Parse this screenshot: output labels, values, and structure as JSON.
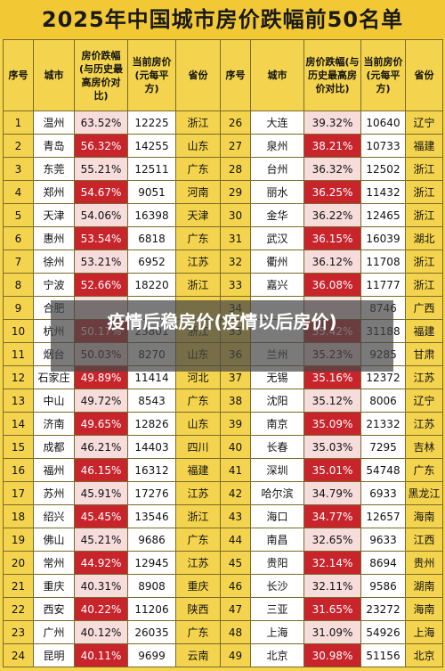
{
  "title": "2025年中国城市房价跌幅前50名单",
  "headers": [
    "序号",
    "城市",
    "房价跌幅(与历史最高房价对比)",
    "当前房价(元每平方)",
    "省份"
  ],
  "rows": [
    [
      [
        "1",
        "温州",
        "63.52%",
        "12225",
        "浙江"
      ],
      [
        "26",
        "大连",
        "39.32%",
        "10640",
        "辽宁"
      ]
    ],
    [
      [
        "2",
        "青岛",
        "56.32%",
        "14255",
        "山东"
      ],
      [
        "27",
        "泉州",
        "38.21%",
        "10733",
        "福建"
      ]
    ],
    [
      [
        "3",
        "东莞",
        "55.21%",
        "12511",
        "广东"
      ],
      [
        "28",
        "台州",
        "36.32%",
        "12502",
        "浙江"
      ]
    ],
    [
      [
        "4",
        "郑州",
        "54.67%",
        "9051",
        "河南"
      ],
      [
        "29",
        "丽水",
        "36.25%",
        "11432",
        "浙江"
      ]
    ],
    [
      [
        "5",
        "天津",
        "54.06%",
        "16398",
        "天津"
      ],
      [
        "30",
        "金华",
        "36.22%",
        "12465",
        "浙江"
      ]
    ],
    [
      [
        "6",
        "惠州",
        "53.54%",
        "6818",
        "广东"
      ],
      [
        "31",
        "武汉",
        "36.15%",
        "16039",
        "湖北"
      ]
    ],
    [
      [
        "7",
        "徐州",
        "53.21%",
        "6952",
        "江苏"
      ],
      [
        "32",
        "衢州",
        "36.12%",
        "11708",
        "浙江"
      ]
    ],
    [
      [
        "8",
        "宁波",
        "52.66%",
        "18220",
        "浙江"
      ],
      [
        "33",
        "嘉兴",
        "36.08%",
        "11777",
        "浙江"
      ]
    ],
    [
      [
        "9",
        "合肥",
        "",
        "",
        "",
        ""
      ],
      [
        "34",
        "",
        "",
        "8746",
        "广西"
      ]
    ],
    [
      [
        "10",
        "杭州",
        "50.17%",
        "23801",
        "浙江"
      ],
      [
        "35",
        "",
        "35.42%",
        "31188",
        "福建"
      ]
    ],
    [
      [
        "11",
        "烟台",
        "50.03%",
        "8270",
        "山东"
      ],
      [
        "36",
        "兰州",
        "35.23%",
        "9285",
        "甘肃"
      ]
    ],
    [
      [
        "12",
        "石家庄",
        "49.89%",
        "11414",
        "河北"
      ],
      [
        "37",
        "无锡",
        "35.16%",
        "12372",
        "江苏"
      ]
    ],
    [
      [
        "13",
        "中山",
        "49.72%",
        "8543",
        "广东"
      ],
      [
        "38",
        "沈阳",
        "35.12%",
        "8006",
        "辽宁"
      ]
    ],
    [
      [
        "14",
        "济南",
        "49.65%",
        "12826",
        "山东"
      ],
      [
        "39",
        "南京",
        "35.09%",
        "21332",
        "江苏"
      ]
    ],
    [
      [
        "15",
        "成都",
        "46.21%",
        "14403",
        "四川"
      ],
      [
        "40",
        "长春",
        "35.03%",
        "7295",
        "吉林"
      ]
    ],
    [
      [
        "16",
        "福州",
        "46.15%",
        "16312",
        "福建"
      ],
      [
        "41",
        "深圳",
        "35.01%",
        "54748",
        "广东"
      ]
    ],
    [
      [
        "17",
        "苏州",
        "45.91%",
        "17276",
        "江苏"
      ],
      [
        "42",
        "哈尔滨",
        "34.79%",
        "6933",
        "黑龙江"
      ]
    ],
    [
      [
        "18",
        "绍兴",
        "45.45%",
        "13546",
        "浙江"
      ],
      [
        "43",
        "海口",
        "34.77%",
        "12657",
        "海南"
      ]
    ],
    [
      [
        "19",
        "佛山",
        "45.21%",
        "9686",
        "广东"
      ],
      [
        "44",
        "南昌",
        "32.65%",
        "9633",
        "江西"
      ]
    ],
    [
      [
        "20",
        "常州",
        "44.92%",
        "12945",
        "江苏"
      ],
      [
        "45",
        "贵阳",
        "32.14%",
        "8694",
        "贵州"
      ]
    ],
    [
      [
        "21",
        "重庆",
        "40.31%",
        "8908",
        "重庆"
      ],
      [
        "46",
        "长沙",
        "32.11%",
        "9586",
        "湖南"
      ]
    ],
    [
      [
        "22",
        "西安",
        "40.22%",
        "11206",
        "陕西"
      ],
      [
        "47",
        "三亚",
        "31.65%",
        "23272",
        "海南"
      ]
    ],
    [
      [
        "23",
        "广州",
        "40.12%",
        "26035",
        "广东"
      ],
      [
        "48",
        "上海",
        "31.09%",
        "54926",
        "上海"
      ]
    ],
    [
      [
        "24",
        "昆明",
        "40.11%",
        "9699",
        "云南"
      ],
      [
        "49",
        "北京",
        "30.98%",
        "51156",
        "北京"
      ]
    ]
  ],
  "hot_left": [
    2,
    4,
    6,
    8,
    10,
    12,
    14,
    16,
    18,
    20,
    22,
    24
  ],
  "hot_right": [
    27,
    29,
    31,
    33,
    35,
    37,
    39,
    41,
    43,
    45,
    47,
    49
  ],
  "overlay_text": "疫情后稳房价(疫情以后房价)"
}
